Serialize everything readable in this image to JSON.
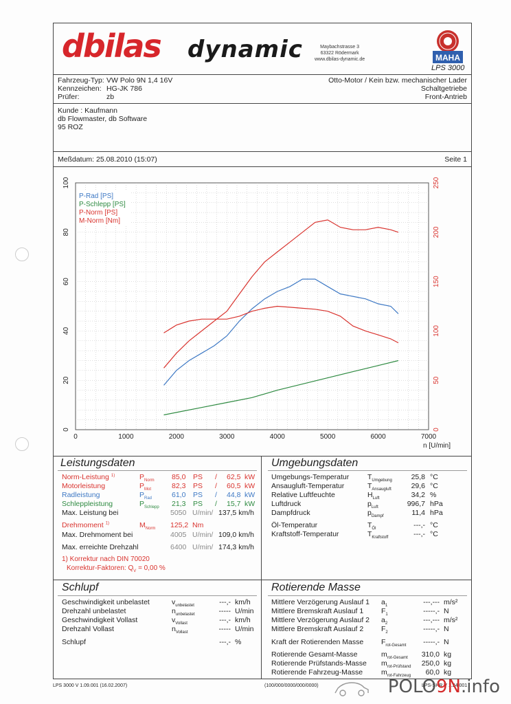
{
  "header": {
    "logo_db": "dbilas",
    "logo_dynamic": "dynamic",
    "address": [
      "Maybachstrasse 3",
      "63322 Rödermark",
      "www.dbilas-dynamic.de"
    ],
    "seal_text": "MAHA",
    "model": "LPS 3000"
  },
  "vehicle": {
    "type_label": "Fahrzeug-Typ:",
    "type_value": "VW Polo 9N 1,4 16V",
    "plate_label": "Kennzeichen:",
    "plate_value": "HG-JK 786",
    "tester_label": "Prüfer:",
    "tester_value": "zb",
    "engine": "Otto-Motor / Kein bzw. mechanischer Lader",
    "gearbox": "Schaltgetriebe",
    "drive": "Front-Antrieb"
  },
  "customer": {
    "line1": "Kunde : Kaufmann",
    "line2": "db Flowmaster, db Software",
    "line3": "95 ROZ"
  },
  "measurement": {
    "date": "Meßdatum: 25.08.2010 (15:07)",
    "page": "Seite 1"
  },
  "chart_data": {
    "type": "line",
    "xlabel": "n [U/min]",
    "xlim": [
      0,
      7000
    ],
    "xticks": [
      "0",
      "1000",
      "2000",
      "3000",
      "4000",
      "5000",
      "6000",
      "7000"
    ],
    "ylim_left": [
      0,
      100
    ],
    "yticks_left": [
      "0",
      "20",
      "40",
      "60",
      "80",
      "100"
    ],
    "ylim_right": [
      0,
      250
    ],
    "yticks_right": [
      "0",
      "50",
      "100",
      "150",
      "200",
      "250"
    ],
    "grid": true,
    "legend_position": "top-left",
    "colors": {
      "P-Rad": "#3d78c4",
      "P-Schlepp": "#2e8a41",
      "P-Norm": "#d9332e",
      "M-Norm": "#d9332e"
    },
    "series": [
      {
        "name": "P-Rad [PS]",
        "axis": "left",
        "x": [
          1750,
          2000,
          2250,
          2500,
          2750,
          3000,
          3250,
          3500,
          3750,
          4000,
          4250,
          4500,
          4750,
          5000,
          5250,
          5500,
          5750,
          6000,
          6250,
          6400
        ],
        "values": [
          18,
          24,
          28,
          31,
          34,
          38,
          44,
          49,
          53,
          56,
          58,
          61,
          61,
          58,
          55,
          54,
          53,
          51,
          50,
          47
        ]
      },
      {
        "name": "P-Schlepp [PS]",
        "axis": "left",
        "x": [
          1750,
          2000,
          2500,
          3000,
          3500,
          4000,
          4500,
          5000,
          5500,
          6000,
          6400
        ],
        "values": [
          6,
          7,
          9,
          11,
          13,
          16,
          18.5,
          21,
          23.5,
          26,
          28
        ]
      },
      {
        "name": "P-Norm [PS]",
        "axis": "left",
        "x": [
          1750,
          2000,
          2250,
          2500,
          2750,
          3000,
          3250,
          3500,
          3750,
          4000,
          4250,
          4500,
          4750,
          5000,
          5250,
          5500,
          5750,
          6000,
          6250,
          6400
        ],
        "values": [
          25,
          31,
          36,
          40,
          44,
          48,
          55,
          62,
          68,
          72,
          76,
          80,
          84,
          85,
          82,
          81,
          81,
          82,
          81,
          80
        ]
      },
      {
        "name": "M-Norm [Nm]",
        "axis": "right",
        "x": [
          1750,
          2000,
          2250,
          2500,
          2750,
          3000,
          3250,
          3500,
          3750,
          4000,
          4250,
          4500,
          4750,
          5000,
          5250,
          5500,
          5750,
          6000,
          6250,
          6400
        ],
        "values": [
          98,
          106,
          110,
          112,
          112,
          112,
          115,
          120,
          123,
          125,
          124,
          123,
          122,
          120,
          115,
          105,
          100,
          96,
          92,
          88
        ]
      }
    ]
  },
  "leistung": {
    "title": "Leistungsdaten",
    "rows": [
      {
        "label": "Norm-Leistung",
        "sup": "1)",
        "sym": "P",
        "sub": "Norm",
        "v1": "85,0",
        "u1": "PS",
        "sep": "/",
        "v2": "62,5",
        "u2": "kW",
        "color": "red"
      },
      {
        "label": "Motorleistung",
        "sup": "",
        "sym": "P",
        "sub": "Mot",
        "v1": "82,3",
        "u1": "PS",
        "sep": "/",
        "v2": "60,5",
        "u2": "kW",
        "color": "red"
      },
      {
        "label": "Radleistung",
        "sup": "",
        "sym": "P",
        "sub": "Rad",
        "v1": "61,0",
        "u1": "PS",
        "sep": "/",
        "v2": "44,8",
        "u2": "kW",
        "color": "blue"
      },
      {
        "label": "Schleppleistung",
        "sup": "",
        "sym": "P",
        "sub": "Schlepp",
        "v1": "21,3",
        "u1": "PS",
        "sep": "/",
        "v2": "15,7",
        "u2": "kW",
        "color": "green"
      }
    ],
    "max_power_label": "Max. Leistung bei",
    "max_power_rpm": "5050",
    "max_power_unit": "U/min/",
    "max_power_speed": "137,5 km/h",
    "torque_label": "Drehmoment",
    "torque_sup": "1)",
    "torque_sym": "M",
    "torque_sub": "Norm",
    "torque_value": "125,2",
    "torque_unit": "Nm",
    "max_torque_label": "Max. Drehmoment bei",
    "max_torque_rpm": "4005",
    "max_torque_unit": "U/min/",
    "max_torque_speed": "109,0 km/h",
    "max_rpm_label": "Max. erreichte Drehzahl",
    "max_rpm": "6400",
    "max_rpm_unit": "U/min/",
    "max_rpm_speed": "174,3 km/h",
    "correction_note": "1) Korrektur nach DIN 70020",
    "correction_factor": "Korrektur-Faktoren: Q",
    "correction_sub": "V",
    "correction_value": "=  0,00 %"
  },
  "umgebung": {
    "title": "Umgebungsdaten",
    "rows": [
      {
        "label": "Umgebungs-Temperatur",
        "sym": "T",
        "sub": "Umgebung",
        "value": "25,8",
        "unit": "°C"
      },
      {
        "label": "Ansaugluft-Temperatur",
        "sym": "T",
        "sub": "Ansaugluft",
        "value": "29,6",
        "unit": "°C"
      },
      {
        "label": "Relative Luftfeuchte",
        "sym": "H",
        "sub": "Luft",
        "value": "34,2",
        "unit": "%"
      },
      {
        "label": "Luftdruck",
        "sym": "p",
        "sub": "Luft",
        "value": "996,7",
        "unit": "hPa"
      },
      {
        "label": "Dampfdruck",
        "sym": "p",
        "sub": "Dampf",
        "value": "11,4",
        "unit": "hPa"
      },
      {
        "label": "Öl-Temperatur",
        "sym": "T",
        "sub": "Öl",
        "value": "---,-",
        "unit": "°C"
      },
      {
        "label": "Kraftstoff-Temperatur",
        "sym": "T",
        "sub": "Kraftstoff",
        "value": "---,-",
        "unit": "°C"
      }
    ]
  },
  "schlupf": {
    "title": "Schlupf",
    "rows": [
      {
        "label": "Geschwindigkeit unbelastet",
        "sym": "v",
        "sub": "unbelastet",
        "value": "---,-",
        "unit": "km/h"
      },
      {
        "label": "Drehzahl unbelastet",
        "sym": "n",
        "sub": "unbelastet",
        "value": "-----",
        "unit": "U/min"
      },
      {
        "label": "Geschwindigkeit Vollast",
        "sym": "v",
        "sub": "Vollast",
        "value": "---,-",
        "unit": "km/h"
      },
      {
        "label": "Drehzahl Vollast",
        "sym": "n",
        "sub": "Vollast",
        "value": "-----",
        "unit": "U/min"
      },
      {
        "label": "Schlupf",
        "sym": "",
        "sub": "",
        "value": "---,-",
        "unit": "%"
      }
    ]
  },
  "rotierende": {
    "title": "Rotierende Masse",
    "rows": [
      {
        "label": "Mittlere Verzögerung Auslauf 1",
        "sym": "a",
        "sub": "1",
        "value": "---,---",
        "unit": "m/s²"
      },
      {
        "label": "Mittlere Bremskraft Auslauf 1",
        "sym": "F",
        "sub": "1",
        "value": "-----,-",
        "unit": "N"
      },
      {
        "label": "Mittlere Verzögerung Auslauf 2",
        "sym": "a",
        "sub": "2",
        "value": "---,---",
        "unit": "m/s²"
      },
      {
        "label": "Mittlere Bremskraft Auslauf 2",
        "sym": "F",
        "sub": "2",
        "value": "-----,-",
        "unit": "N"
      },
      {
        "label": "Kraft der Rotierenden Masse",
        "sym": "F",
        "sub": "rot-Gesamt",
        "value": "-----,-",
        "unit": "N"
      },
      {
        "label": "Rotierende Gesamt-Masse",
        "sym": "m",
        "sub": "rot-Gesamt",
        "value": "310,0",
        "unit": "kg"
      },
      {
        "label": "Rotierende Prüfstands-Masse",
        "sym": "m",
        "sub": "rot-Prüfstand",
        "value": "250,0",
        "unit": "kg"
      },
      {
        "label": "Rotierende Fahrzeug-Masse",
        "sym": "m",
        "sub": "rot-Fahrzeug",
        "value": "60,0",
        "unit": "kg"
      }
    ]
  },
  "footer": {
    "version": "LPS 3000 V 1.09.001 (16.02.2007)",
    "code": "(100/000/0000/000/0000)",
    "right_code": "LPS-SHR   V 1.24.001",
    "brand_a": "POLO",
    "brand_b": "9N",
    "brand_c": ".info"
  }
}
